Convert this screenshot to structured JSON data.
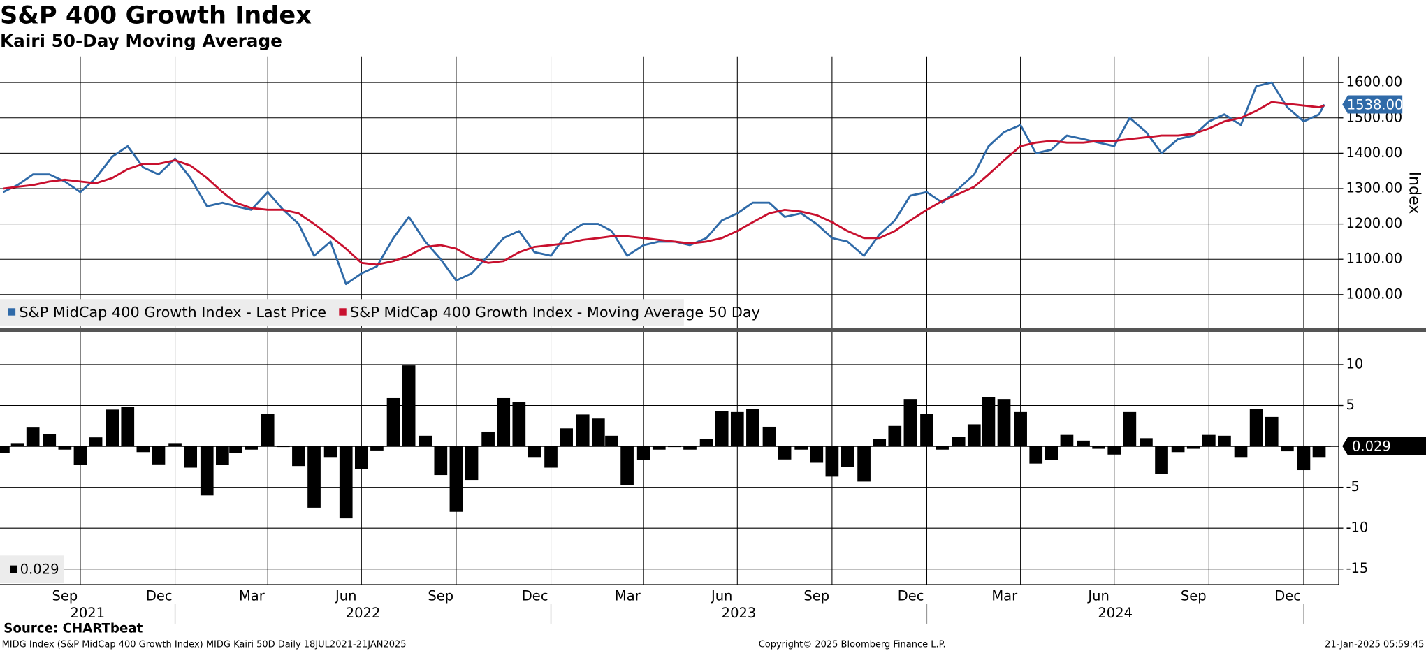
{
  "chart_data": [
    {
      "type": "line",
      "title": "S&P 400 Growth Index",
      "subtitle": "Kairi 50-Day Moving Average",
      "ylabel": "Index",
      "x": [
        "2021-07-18",
        "2021-08-01",
        "2021-08-16",
        "2021-09-01",
        "2021-09-16",
        "2021-10-01",
        "2021-10-16",
        "2021-11-01",
        "2021-11-16",
        "2021-12-01",
        "2021-12-16",
        "2022-01-01",
        "2022-01-16",
        "2022-02-01",
        "2022-02-16",
        "2022-03-01",
        "2022-03-16",
        "2022-04-01",
        "2022-04-16",
        "2022-05-01",
        "2022-05-16",
        "2022-06-01",
        "2022-06-16",
        "2022-07-01",
        "2022-07-16",
        "2022-08-01",
        "2022-08-16",
        "2022-09-01",
        "2022-09-16",
        "2022-10-01",
        "2022-10-16",
        "2022-11-01",
        "2022-11-16",
        "2022-12-01",
        "2022-12-16",
        "2023-01-01",
        "2023-01-16",
        "2023-02-01",
        "2023-02-16",
        "2023-03-01",
        "2023-03-16",
        "2023-04-01",
        "2023-04-16",
        "2023-05-01",
        "2023-05-16",
        "2023-06-01",
        "2023-06-16",
        "2023-07-01",
        "2023-07-16",
        "2023-08-01",
        "2023-08-16",
        "2023-09-01",
        "2023-09-16",
        "2023-10-01",
        "2023-10-16",
        "2023-11-01",
        "2023-11-16",
        "2023-12-01",
        "2023-12-16",
        "2024-01-01",
        "2024-01-16",
        "2024-02-01",
        "2024-02-16",
        "2024-03-01",
        "2024-03-16",
        "2024-04-01",
        "2024-04-16",
        "2024-05-01",
        "2024-05-16",
        "2024-06-01",
        "2024-06-16",
        "2024-07-01",
        "2024-07-16",
        "2024-08-01",
        "2024-08-16",
        "2024-09-01",
        "2024-09-16",
        "2024-10-01",
        "2024-10-16",
        "2024-11-01",
        "2024-11-16",
        "2024-12-01",
        "2024-12-16",
        "2025-01-01",
        "2025-01-16",
        "2025-01-21"
      ],
      "series": [
        {
          "name": "S&P MidCap 400 Growth Index - Last Price",
          "color": "#2f6aa8",
          "values": [
            1290,
            1310,
            1340,
            1340,
            1320,
            1290,
            1330,
            1390,
            1420,
            1360,
            1340,
            1385,
            1330,
            1250,
            1260,
            1250,
            1240,
            1290,
            1240,
            1200,
            1110,
            1150,
            1030,
            1060,
            1080,
            1160,
            1220,
            1150,
            1100,
            1040,
            1060,
            1110,
            1160,
            1180,
            1120,
            1110,
            1170,
            1200,
            1200,
            1180,
            1110,
            1140,
            1150,
            1150,
            1140,
            1160,
            1210,
            1230,
            1260,
            1260,
            1220,
            1230,
            1200,
            1160,
            1150,
            1110,
            1170,
            1210,
            1280,
            1290,
            1260,
            1300,
            1340,
            1420,
            1460,
            1480,
            1400,
            1410,
            1450,
            1440,
            1430,
            1420,
            1500,
            1460,
            1400,
            1440,
            1450,
            1490,
            1510,
            1480,
            1590,
            1600,
            1530,
            1490,
            1510,
            1538
          ],
          "value_labels": [
            null,
            null,
            null,
            null,
            null,
            null,
            null,
            null,
            null,
            null,
            null,
            null,
            null,
            null,
            null,
            null,
            null,
            null,
            null,
            null,
            null,
            null,
            null,
            null,
            null,
            null,
            null,
            null,
            null,
            null,
            null,
            null,
            null,
            null,
            null,
            null,
            null,
            null,
            null,
            null,
            null,
            null,
            null,
            null,
            null,
            null,
            null,
            null,
            null,
            null,
            null,
            null,
            null,
            null,
            null,
            null,
            null,
            null,
            null,
            null,
            null,
            null,
            null,
            null,
            null,
            null,
            null,
            null,
            null,
            null,
            null,
            null,
            null,
            null,
            null,
            null,
            null,
            null,
            null,
            null,
            null,
            null,
            null,
            null,
            null,
            "1538.00"
          ]
        },
        {
          "name": "S&P MidCap 400 Growth Index - Moving Average 50 Day",
          "color": "#c8102e",
          "values": [
            1300,
            1305,
            1310,
            1320,
            1325,
            1320,
            1315,
            1330,
            1355,
            1370,
            1370,
            1380,
            1365,
            1330,
            1290,
            1260,
            1245,
            1240,
            1240,
            1230,
            1200,
            1165,
            1130,
            1090,
            1085,
            1095,
            1110,
            1135,
            1140,
            1130,
            1105,
            1090,
            1095,
            1120,
            1135,
            1140,
            1145,
            1155,
            1160,
            1165,
            1165,
            1160,
            1155,
            1150,
            1145,
            1150,
            1160,
            1180,
            1205,
            1230,
            1240,
            1235,
            1225,
            1205,
            1180,
            1160,
            1160,
            1180,
            1210,
            1240,
            1265,
            1285,
            1305,
            1340,
            1380,
            1420,
            1430,
            1435,
            1430,
            1430,
            1435,
            1435,
            1440,
            1445,
            1450,
            1450,
            1455,
            1470,
            1490,
            1500,
            1520,
            1545,
            1540,
            1535,
            1530,
            1535
          ]
        }
      ],
      "ylim": [
        905,
        1674
      ],
      "yticks": [
        {
          "value": 1000,
          "label": "1000.00"
        },
        {
          "value": 1100,
          "label": "1100.00"
        },
        {
          "value": 1200,
          "label": "1200.00"
        },
        {
          "value": 1300,
          "label": "1300.00"
        },
        {
          "value": 1400,
          "label": "1400.00"
        },
        {
          "value": 1500,
          "label": "1500.00"
        },
        {
          "value": 1600,
          "label": "1600.00"
        }
      ],
      "grid": true,
      "legend": "lower left"
    },
    {
      "type": "bar",
      "color": "#000000",
      "x": [
        "2021-07-18",
        "2021-08-01",
        "2021-08-16",
        "2021-09-01",
        "2021-09-16",
        "2021-10-01",
        "2021-10-16",
        "2021-11-01",
        "2021-11-16",
        "2021-12-01",
        "2021-12-16",
        "2022-01-01",
        "2022-01-16",
        "2022-02-01",
        "2022-02-16",
        "2022-03-01",
        "2022-03-16",
        "2022-04-01",
        "2022-04-16",
        "2022-05-01",
        "2022-05-16",
        "2022-06-01",
        "2022-06-16",
        "2022-07-01",
        "2022-07-16",
        "2022-08-01",
        "2022-08-16",
        "2022-09-01",
        "2022-09-16",
        "2022-10-01",
        "2022-10-16",
        "2022-11-01",
        "2022-11-16",
        "2022-12-01",
        "2022-12-16",
        "2023-01-01",
        "2023-01-16",
        "2023-02-01",
        "2023-02-16",
        "2023-03-01",
        "2023-03-16",
        "2023-04-01",
        "2023-04-16",
        "2023-05-01",
        "2023-05-16",
        "2023-06-01",
        "2023-06-16",
        "2023-07-01",
        "2023-07-16",
        "2023-08-01",
        "2023-08-16",
        "2023-09-01",
        "2023-09-16",
        "2023-10-01",
        "2023-10-16",
        "2023-11-01",
        "2023-11-16",
        "2023-12-01",
        "2023-12-16",
        "2024-01-01",
        "2024-01-16",
        "2024-02-01",
        "2024-02-16",
        "2024-03-01",
        "2024-03-16",
        "2024-04-01",
        "2024-04-16",
        "2024-05-01",
        "2024-05-16",
        "2024-06-01",
        "2024-06-16",
        "2024-07-01",
        "2024-07-16",
        "2024-08-01",
        "2024-08-16",
        "2024-09-01",
        "2024-09-16",
        "2024-10-01",
        "2024-10-16",
        "2024-11-01",
        "2024-11-16",
        "2024-12-01",
        "2024-12-16",
        "2025-01-01",
        "2025-01-16",
        "2025-01-21"
      ],
      "values": [
        -0.8,
        0.4,
        2.3,
        1.5,
        -0.4,
        -2.3,
        1.1,
        4.5,
        4.8,
        -0.7,
        -2.2,
        0.4,
        -2.6,
        -6.0,
        -2.3,
        -0.8,
        -0.4,
        4.0,
        0,
        -2.4,
        -7.5,
        -1.3,
        -8.8,
        -2.8,
        -0.5,
        5.9,
        9.9,
        1.3,
        -3.5,
        -8.0,
        -4.1,
        1.8,
        5.9,
        5.4,
        -1.3,
        -2.6,
        2.2,
        3.9,
        3.4,
        1.3,
        -4.7,
        -1.7,
        -0.4,
        0,
        -0.4,
        0.9,
        4.3,
        4.2,
        4.6,
        2.4,
        -1.6,
        -0.4,
        -2.0,
        -3.7,
        -2.5,
        -4.3,
        0.9,
        2.5,
        5.8,
        4.0,
        -0.4,
        1.2,
        2.7,
        6.0,
        5.8,
        4.2,
        -2.1,
        -1.7,
        1.4,
        0.7,
        -0.3,
        -1.0,
        4.2,
        1.0,
        -3.4,
        -0.7,
        -0.3,
        1.4,
        1.3,
        -1.3,
        4.6,
        3.6,
        -0.6,
        -2.9,
        -1.3,
        0.029
      ],
      "ylim": [
        -16.9,
        14
      ],
      "yticks": [
        -15,
        -10,
        -5,
        5,
        10
      ],
      "grid": true,
      "xlim": [
        "2021-07-15",
        "2025-02-04"
      ],
      "xticks": [
        {
          "value": "2021-09",
          "label": "Sep"
        },
        {
          "value": "2021-12",
          "label": "Dec"
        },
        {
          "value": "2022-03",
          "label": "Mar"
        },
        {
          "value": "2022-06",
          "label": "Jun"
        },
        {
          "value": "2022-09",
          "label": "Sep"
        },
        {
          "value": "2022-12",
          "label": "Dec"
        },
        {
          "value": "2023-03",
          "label": "Mar"
        },
        {
          "value": "2023-06",
          "label": "Jun"
        },
        {
          "value": "2023-09",
          "label": "Sep"
        },
        {
          "value": "2023-12",
          "label": "Dec"
        },
        {
          "value": "2024-03",
          "label": "Mar"
        },
        {
          "value": "2024-06",
          "label": "Jun"
        },
        {
          "value": "2024-09",
          "label": "Sep"
        },
        {
          "value": "2024-12",
          "label": "Dec"
        }
      ],
      "year_ticks": [
        2021,
        2022,
        2023,
        2024
      ]
    }
  ],
  "footer": {
    "source": "Source: CHARTbeat",
    "description": "MIDG Index (S&P MidCap 400 Growth Index) MIDG Kairi 50D  Daily 18JUL2021-21JAN2025",
    "copyright": "Copyright© 2025 Bloomberg Finance L.P.",
    "timestamp": "21-Jan-2025 05:59:45"
  }
}
